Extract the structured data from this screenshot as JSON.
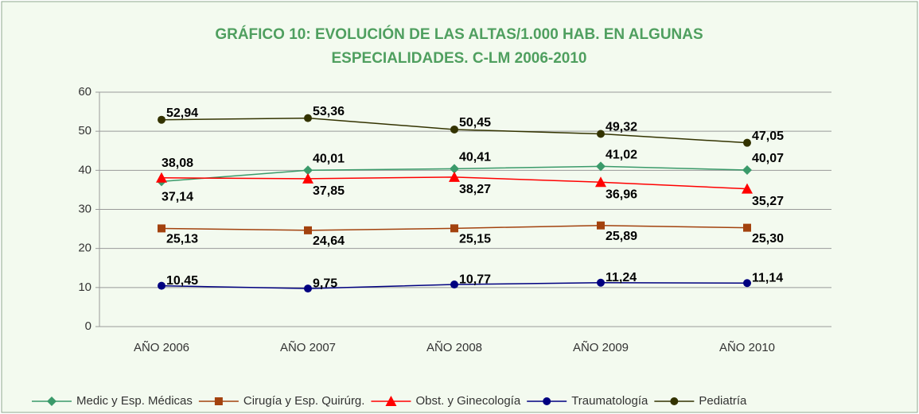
{
  "chart_data": {
    "type": "line",
    "title": [
      "GRÁFICO 10: EVOLUCIÓN DE LAS ALTAS/1.000 HAB. EN ALGUNAS",
      "ESPECIALIDADES. C-LM 2006-2010"
    ],
    "categories": [
      "AÑO 2006",
      "AÑO 2007",
      "AÑO 2008",
      "AÑO 2009",
      "AÑO 2010"
    ],
    "ylim": [
      0,
      60
    ],
    "yticks": [
      0,
      10,
      20,
      30,
      40,
      50,
      60
    ],
    "grid": true,
    "legend": "bottom",
    "series": [
      {
        "name": "Medic y Esp. Médicas",
        "color": "#3a9a6a",
        "marker": "diamond",
        "values": [
          37.14,
          40.01,
          40.41,
          41.02,
          40.07
        ],
        "value_labels": [
          "37,14",
          "40,01",
          "40,41",
          "41,02",
          "40,07"
        ]
      },
      {
        "name": "Cirugía y Esp. Quirúrg.",
        "color": "#a3420e",
        "marker": "square",
        "values": [
          25.13,
          24.64,
          25.15,
          25.89,
          25.3
        ],
        "value_labels": [
          "25,13",
          "24,64",
          "25,15",
          "25,89",
          "25,30"
        ]
      },
      {
        "name": "Obst. y Ginecología",
        "color": "#ff0000",
        "marker": "triangle",
        "values": [
          38.08,
          37.85,
          38.27,
          36.96,
          35.27
        ],
        "value_labels": [
          "38,08",
          "37,85",
          "38,27",
          "36,96",
          "35,27"
        ]
      },
      {
        "name": "Traumatología",
        "color": "#000080",
        "marker": "circle",
        "values": [
          10.45,
          9.75,
          10.77,
          11.24,
          11.14
        ],
        "value_labels": [
          "10,45",
          "9,75",
          "10,77",
          "11,24",
          "11,14"
        ]
      },
      {
        "name": "Pediatría",
        "color": "#333300",
        "marker": "circle",
        "values": [
          52.94,
          53.36,
          50.45,
          49.32,
          47.05
        ],
        "value_labels": [
          "52,94",
          "53,36",
          "50,45",
          "49,32",
          "47,05"
        ]
      }
    ]
  }
}
